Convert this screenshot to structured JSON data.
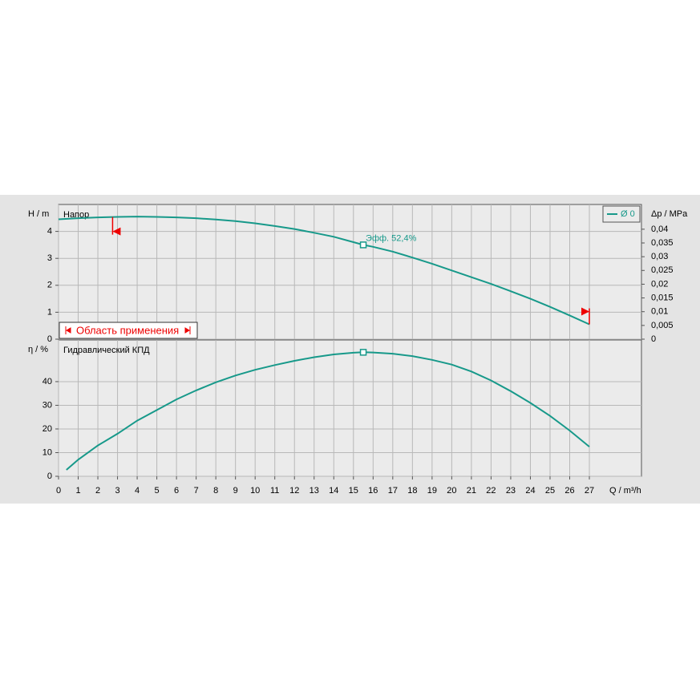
{
  "chart_data": [
    {
      "type": "line",
      "title": "Напор",
      "y_label": "H / m",
      "y2_label": "Δp / MPa",
      "x": [
        0,
        1,
        2,
        3,
        4,
        5,
        6,
        7,
        8,
        9,
        10,
        11,
        12,
        13,
        14,
        15,
        15.5,
        16,
        17,
        18,
        19,
        20,
        21,
        22,
        23,
        24,
        25,
        26,
        27
      ],
      "series": [
        {
          "name": "Ø 0",
          "color": "#17998a",
          "values": [
            4.45,
            4.49,
            4.52,
            4.54,
            4.55,
            4.54,
            4.52,
            4.49,
            4.44,
            4.38,
            4.3,
            4.2,
            4.09,
            3.95,
            3.8,
            3.6,
            3.5,
            3.43,
            3.25,
            3.03,
            2.8,
            2.55,
            2.3,
            2.05,
            1.78,
            1.5,
            1.2,
            0.88,
            0.55
          ]
        }
      ],
      "duty_point": {
        "x": 15.5,
        "y": 3.5,
        "label": "Эфф.  52,4%"
      },
      "application_range": {
        "label": "Область применения",
        "min": 2.75,
        "max": 27
      },
      "xlim": [
        0,
        29.65
      ],
      "ylim": [
        0,
        5
      ],
      "y2lim": [
        0,
        0.049
      ],
      "xticks": [
        0,
        1,
        2,
        3,
        4,
        5,
        6,
        7,
        8,
        9,
        10,
        11,
        12,
        13,
        14,
        15,
        16,
        17,
        18,
        19,
        20,
        21,
        22,
        23,
        24,
        25,
        26,
        27
      ],
      "yticks": [
        0,
        1,
        2,
        3,
        4
      ],
      "y2ticks": [
        0,
        {
          "value": 0.005,
          "label": "0,005"
        },
        {
          "value": 0.01,
          "label": "0,01"
        },
        {
          "value": 0.015,
          "label": "0,015"
        },
        {
          "value": 0.02,
          "label": "0,02"
        },
        {
          "value": 0.025,
          "label": "0,025"
        },
        {
          "value": 0.03,
          "label": "0,03"
        },
        {
          "value": 0.035,
          "label": "0,035"
        },
        {
          "value": 0.04,
          "label": "0,04"
        }
      ],
      "grid": true,
      "legend": "upper right"
    },
    {
      "type": "line",
      "title": "Гидравлический КПД",
      "y_label": "η / %",
      "x_label": "Q / m³/h",
      "x": [
        0.4,
        1,
        2,
        3,
        4,
        5,
        6,
        7,
        8,
        9,
        10,
        11,
        12,
        13,
        14,
        15,
        15.5,
        16,
        17,
        18,
        19,
        20,
        21,
        22,
        23,
        24,
        25,
        26,
        27
      ],
      "series": [
        {
          "name": "Гидравлический КПД",
          "color": "#17998a",
          "values": [
            2.7,
            7,
            13,
            18,
            23.5,
            28,
            32.5,
            36.3,
            39.7,
            42.6,
            45,
            47,
            48.8,
            50.3,
            51.5,
            52.2,
            52.4,
            52.3,
            51.8,
            50.8,
            49.2,
            47.2,
            44.3,
            40.5,
            36,
            31,
            25.5,
            19.3,
            12.5
          ]
        }
      ],
      "duty_point": {
        "x": 15.5,
        "y": 52.4
      },
      "xlim": [
        0,
        29.65
      ],
      "ylim": [
        0,
        57.6
      ],
      "xticks": [
        0,
        1,
        2,
        3,
        4,
        5,
        6,
        7,
        8,
        9,
        10,
        11,
        12,
        13,
        14,
        15,
        16,
        17,
        18,
        19,
        20,
        21,
        22,
        23,
        24,
        25,
        26,
        27
      ],
      "yticks": [
        0,
        10,
        20,
        30,
        40
      ],
      "grid": true
    }
  ]
}
